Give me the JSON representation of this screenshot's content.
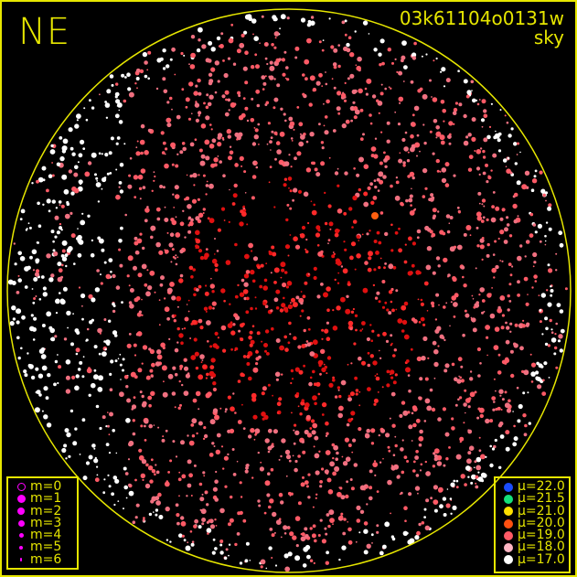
{
  "direction_label": "NE",
  "frame_id": "03k61104o0131w",
  "frame_type": "sky",
  "colors": {
    "frame": "#e6e600",
    "background": "#000000"
  },
  "magnitude_legend": [
    {
      "label": "m=0",
      "symbol": "open-circle"
    },
    {
      "label": "m=1"
    },
    {
      "label": "m=2"
    },
    {
      "label": "m=3"
    },
    {
      "label": "m=4"
    },
    {
      "label": "m=5"
    },
    {
      "label": "m=6"
    }
  ],
  "surface_brightness_legend": [
    {
      "label": "μ=22.0",
      "color": "#1a4cff"
    },
    {
      "label": "μ=21.5",
      "color": "#14e07a"
    },
    {
      "label": "μ=21.0",
      "color": "#ffe000"
    },
    {
      "label": "μ=20.0",
      "color": "#ff5010"
    },
    {
      "label": "μ=19.0",
      "color": "#ff5a66"
    },
    {
      "label": "μ=18.0",
      "color": "#ffb6c4"
    },
    {
      "label": "μ=17.0",
      "color": "#ffffff"
    }
  ]
}
